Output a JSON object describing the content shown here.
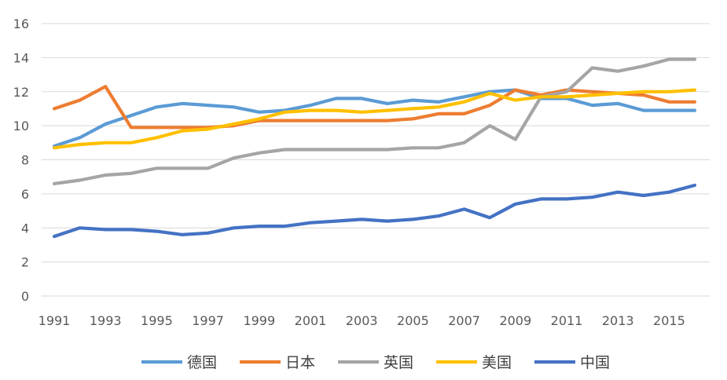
{
  "chart_data": {
    "type": "line",
    "title": "",
    "xlabel": "",
    "ylabel": "",
    "ylim": [
      0,
      16
    ],
    "y_ticks": [
      0,
      2,
      4,
      6,
      8,
      10,
      12,
      14,
      16
    ],
    "x": [
      1991,
      1992,
      1993,
      1994,
      1995,
      1996,
      1997,
      1998,
      1999,
      2000,
      2001,
      2002,
      2003,
      2004,
      2005,
      2006,
      2007,
      2008,
      2009,
      2010,
      2011,
      2012,
      2013,
      2014,
      2015,
      2016
    ],
    "x_tick_labels": [
      "1991",
      "1993",
      "1995",
      "1997",
      "1999",
      "2001",
      "2003",
      "2005",
      "2007",
      "2009",
      "2011",
      "2013",
      "2015"
    ],
    "grid": true,
    "legend_position": "bottom",
    "series": [
      {
        "name": "德国",
        "color": "#5b9bd5",
        "values": [
          8.8,
          9.3,
          10.1,
          10.6,
          11.1,
          11.3,
          11.2,
          11.1,
          10.8,
          10.9,
          11.2,
          11.6,
          11.6,
          11.3,
          11.5,
          11.4,
          11.7,
          12.0,
          12.1,
          11.6,
          11.6,
          11.2,
          11.3,
          10.9,
          10.9,
          10.9
        ]
      },
      {
        "name": "日本",
        "color": "#ed7d31",
        "values": [
          11.0,
          11.5,
          12.3,
          9.9,
          9.9,
          9.9,
          9.9,
          10.0,
          10.3,
          10.3,
          10.3,
          10.3,
          10.3,
          10.3,
          10.4,
          10.7,
          10.7,
          11.2,
          12.1,
          11.8,
          12.1,
          12.0,
          11.9,
          11.8,
          11.4,
          11.4
        ]
      },
      {
        "name": "英国",
        "color": "#a5a5a5",
        "values": [
          6.6,
          6.8,
          7.1,
          7.2,
          7.5,
          7.5,
          7.5,
          8.1,
          8.4,
          8.6,
          8.6,
          8.6,
          8.6,
          8.6,
          8.7,
          8.7,
          9.0,
          10.0,
          9.2,
          11.7,
          12.0,
          13.4,
          13.2,
          13.5,
          13.9,
          13.9
        ]
      },
      {
        "name": "美国",
        "color": "#ffc000",
        "values": [
          8.7,
          8.9,
          9.0,
          9.0,
          9.3,
          9.7,
          9.8,
          10.1,
          10.4,
          10.8,
          10.9,
          10.9,
          10.8,
          10.9,
          11.0,
          11.1,
          11.4,
          11.9,
          11.5,
          11.7,
          11.7,
          11.8,
          11.9,
          12.0,
          12.0,
          12.1
        ]
      },
      {
        "name": "中国",
        "color": "#4472c4",
        "values": [
          3.5,
          4.0,
          3.9,
          3.9,
          3.8,
          3.6,
          3.7,
          4.0,
          4.1,
          4.1,
          4.3,
          4.4,
          4.5,
          4.4,
          4.5,
          4.7,
          5.1,
          4.6,
          5.4,
          5.7,
          5.7,
          5.8,
          6.1,
          5.9,
          6.1,
          6.5
        ]
      }
    ]
  }
}
